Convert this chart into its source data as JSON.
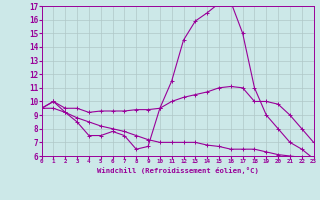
{
  "xlabel": "Windchill (Refroidissement éolien,°C)",
  "x": [
    0,
    1,
    2,
    3,
    4,
    5,
    6,
    7,
    8,
    9,
    10,
    11,
    12,
    13,
    14,
    15,
    16,
    17,
    18,
    19,
    20,
    21,
    22,
    23
  ],
  "curve1": [
    9.5,
    10.0,
    9.5,
    9.5,
    9.2,
    9.3,
    9.3,
    9.3,
    9.4,
    9.4,
    9.5,
    10.0,
    10.3,
    10.5,
    10.7,
    11.0,
    11.1,
    11.0,
    10.0,
    10.0,
    9.8,
    9.0,
    8.0,
    7.0
  ],
  "curve2": [
    9.5,
    10.0,
    9.2,
    8.5,
    7.5,
    7.5,
    7.8,
    7.5,
    6.5,
    6.7,
    9.5,
    11.5,
    14.5,
    15.9,
    16.5,
    17.2,
    17.3,
    15.0,
    11.0,
    9.0,
    8.0,
    7.0,
    6.5,
    5.8
  ],
  "curve3": [
    9.5,
    9.5,
    9.2,
    8.8,
    8.5,
    8.2,
    8.0,
    7.8,
    7.5,
    7.2,
    7.0,
    7.0,
    7.0,
    7.0,
    6.8,
    6.7,
    6.5,
    6.5,
    6.5,
    6.3,
    6.1,
    6.0,
    5.9,
    5.8
  ],
  "color": "#990099",
  "bg_color": "#cce8e8",
  "grid_color": "#b0c8c8",
  "ylim": [
    6,
    17
  ],
  "xlim": [
    0,
    23
  ],
  "yticks": [
    6,
    7,
    8,
    9,
    10,
    11,
    12,
    13,
    14,
    15,
    16,
    17
  ],
  "xticks": [
    0,
    1,
    2,
    3,
    4,
    5,
    6,
    7,
    8,
    9,
    10,
    11,
    12,
    13,
    14,
    15,
    16,
    17,
    18,
    19,
    20,
    21,
    22,
    23
  ],
  "linewidth": 0.8,
  "markersize": 2.5
}
